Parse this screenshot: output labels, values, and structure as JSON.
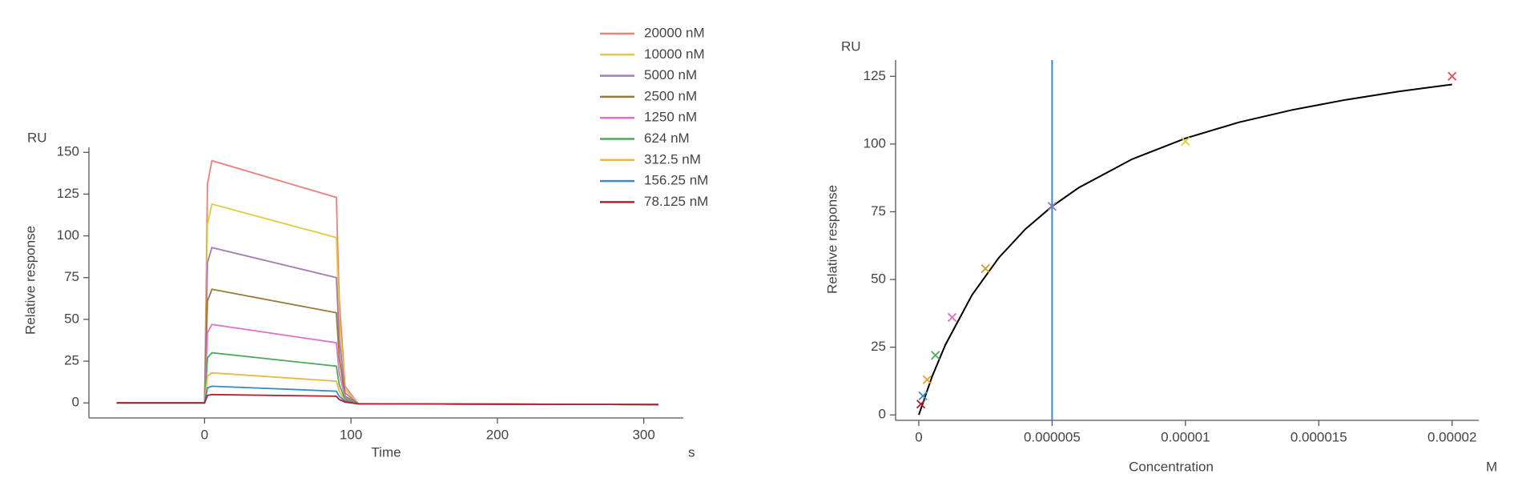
{
  "chart_data": [
    {
      "type": "line",
      "xlabel": "Time",
      "xunit": "s",
      "ylabel": "Relative response",
      "yunit": "RU",
      "x": [
        -60,
        0,
        2,
        5,
        90,
        92,
        96,
        105,
        310
      ],
      "xlim": [
        -79,
        327
      ],
      "xticks": [
        0,
        100,
        200,
        300
      ],
      "ylim": [
        -9,
        153
      ],
      "yticks": [
        0,
        25,
        50,
        75,
        100,
        125,
        150
      ],
      "grid": false,
      "legend": "upper right",
      "series": [
        {
          "name": "20000 nM",
          "color": "#e8837a",
          "values": [
            0,
            0,
            131,
            145,
            123,
            62,
            10,
            -0.5,
            -1
          ]
        },
        {
          "name": "10000 nM",
          "color": "#e3cc3c",
          "values": [
            0,
            0,
            107,
            119,
            99,
            50,
            8,
            -0.5,
            -1
          ]
        },
        {
          "name": "5000 nM",
          "color": "#a67ab6",
          "values": [
            0,
            0,
            84,
            93,
            75,
            38,
            6,
            -0.5,
            -1
          ]
        },
        {
          "name": "2500 nM",
          "color": "#9a7a3a",
          "values": [
            0,
            0,
            61,
            68,
            54,
            27,
            4,
            -0.5,
            -1
          ]
        },
        {
          "name": "1250 nM",
          "color": "#e070c8",
          "values": [
            0,
            0,
            42,
            47,
            36,
            18,
            3,
            -0.5,
            -1
          ]
        },
        {
          "name": "624 nM",
          "color": "#4aaa5a",
          "values": [
            0,
            0,
            27,
            30,
            22,
            11,
            2,
            -0.5,
            -1
          ]
        },
        {
          "name": "312.5 nM",
          "color": "#e8b84a",
          "values": [
            0,
            0,
            16,
            18,
            13,
            7,
            1,
            -0.5,
            -1
          ]
        },
        {
          "name": "156.25 nM",
          "color": "#3a8ac8",
          "values": [
            0,
            0,
            9,
            10,
            7,
            4,
            1,
            -0.5,
            -1
          ]
        },
        {
          "name": "78.125 nM",
          "color": "#b02030",
          "values": [
            0,
            0,
            4.5,
            5,
            4,
            2,
            0.5,
            -0.5,
            -1
          ]
        }
      ]
    },
    {
      "type": "scatter",
      "xlabel": "Concentration",
      "xunit": "M",
      "ylabel": "Relative response",
      "yunit": "RU",
      "x": [
        2e-05,
        1e-05,
        5e-06,
        2.5e-06,
        1.25e-06,
        6.24e-07,
        3.125e-07,
        1.5625e-07,
        7.8125e-08
      ],
      "values": [
        125,
        101,
        77,
        54,
        36,
        22,
        13,
        7,
        4
      ],
      "colors": [
        "#e05050",
        "#e3cc3c",
        "#8a7ac0",
        "#c8a030",
        "#e070c8",
        "#4aaa5a",
        "#e8a030",
        "#3a8ac8",
        "#b02030"
      ],
      "xlim": [
        -8.7e-07,
        2.1e-05
      ],
      "xticks": [
        0,
        5e-06,
        1e-05,
        1.5e-05,
        2e-05
      ],
      "ylim": [
        -2,
        131
      ],
      "yticks": [
        0,
        25,
        50,
        75,
        100,
        125
      ],
      "grid": false,
      "fit": {
        "color": "#000000",
        "x": [
          0,
          5e-07,
          1e-06,
          2e-06,
          3e-06,
          4e-06,
          5e-06,
          6e-06,
          8e-06,
          1e-05,
          1.2e-05,
          1.4e-05,
          1.6e-05,
          1.8e-05,
          2e-05
        ],
        "values": [
          0,
          14.2,
          25.9,
          44.3,
          58.0,
          68.6,
          77.0,
          83.9,
          94.4,
          102.1,
          108.0,
          112.6,
          116.3,
          119.4,
          122.0
        ]
      },
      "reference_line": {
        "x": 5e-06,
        "color": "#3a8ac8"
      }
    }
  ]
}
